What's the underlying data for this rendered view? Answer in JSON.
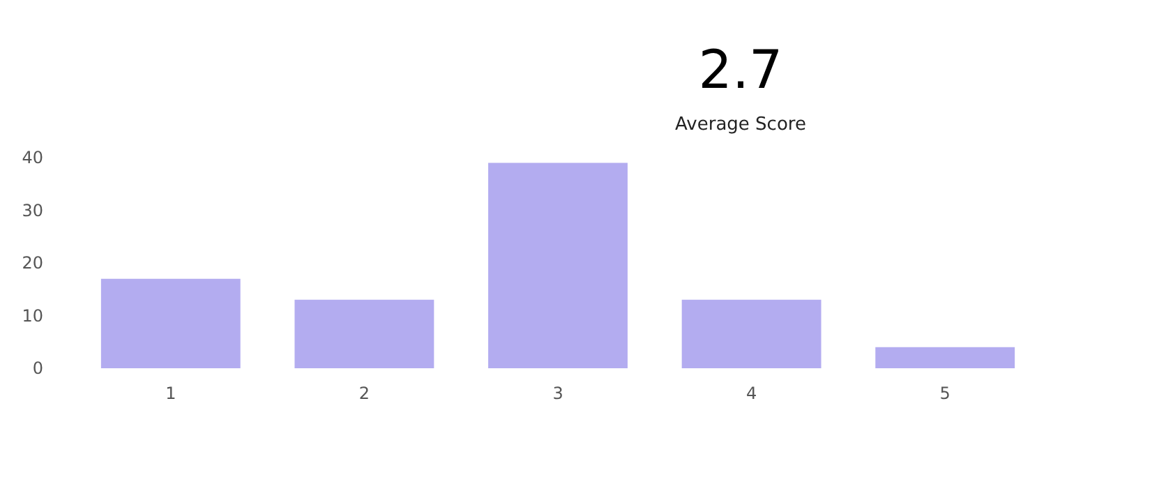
{
  "chart_data": {
    "type": "bar",
    "title": "2.7",
    "subtitle": "Average Score",
    "categories": [
      "1",
      "2",
      "3",
      "4",
      "5"
    ],
    "values": [
      17,
      13,
      39,
      13,
      4
    ],
    "color": "#b3acf0",
    "ylim": [
      0,
      40
    ],
    "yticks": [
      0,
      10,
      20,
      30,
      40
    ],
    "grid": false
  }
}
